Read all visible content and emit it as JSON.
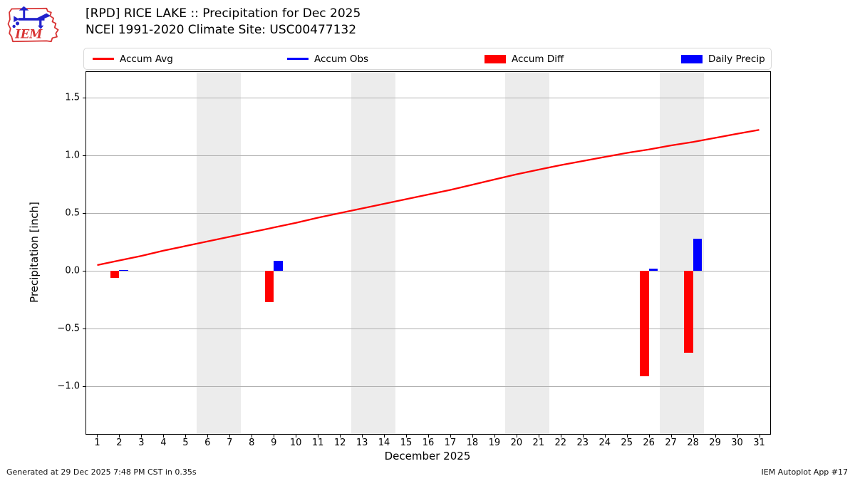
{
  "header": {
    "logo_text": "IEM",
    "title_line1": "[RPD] RICE LAKE :: Precipitation for Dec 2025",
    "title_line2": "NCEI 1991-2020 Climate Site: USC00477132"
  },
  "legend": {
    "items": [
      {
        "label": "Accum Avg",
        "swatch": "line",
        "color": "#ff0000"
      },
      {
        "label": "Accum Obs",
        "swatch": "line",
        "color": "#0000ff"
      },
      {
        "label": "Accum Diff",
        "swatch": "patch",
        "color": "#ff0000"
      },
      {
        "label": "Daily Precip",
        "swatch": "patch",
        "color": "#0000ff"
      }
    ]
  },
  "chart_data": {
    "type": "line+bar",
    "title": "[RPD] RICE LAKE :: Precipitation for Dec 2025",
    "subtitle": "NCEI 1991-2020 Climate Site: USC00477132",
    "xlabel": "December 2025",
    "ylabel": "Precipitation [inch]",
    "xlim": [
      0.5,
      31.5
    ],
    "ylim": [
      -1.41,
      1.72
    ],
    "grid": "horizontal",
    "legend_position": "top",
    "xticks": [
      1,
      2,
      3,
      4,
      5,
      6,
      7,
      8,
      9,
      10,
      11,
      12,
      13,
      14,
      15,
      16,
      17,
      18,
      19,
      20,
      21,
      22,
      23,
      24,
      25,
      26,
      27,
      28,
      29,
      30,
      31
    ],
    "yticks": [
      1.5,
      1.0,
      0.5,
      0.0,
      -0.5,
      -1.0
    ],
    "ytick_labels": [
      "1.5",
      "1.0",
      "0.5",
      "0.0",
      "−0.5",
      "−1.0"
    ],
    "weekend_bands": [
      [
        6,
        7
      ],
      [
        13,
        14
      ],
      [
        20,
        21
      ],
      [
        27,
        28
      ]
    ],
    "weekend_band_color": "#ececec",
    "series": [
      {
        "name": "Accum Avg",
        "type": "line",
        "color": "#ff0000",
        "x": [
          1,
          2,
          3,
          4,
          5,
          6,
          7,
          8,
          9,
          10,
          11,
          12,
          13,
          14,
          15,
          16,
          17,
          18,
          19,
          20,
          21,
          22,
          23,
          24,
          25,
          26,
          27,
          28,
          29,
          30,
          31
        ],
        "values": [
          0.05,
          0.09,
          0.13,
          0.175,
          0.215,
          0.255,
          0.295,
          0.335,
          0.375,
          0.415,
          0.46,
          0.5,
          0.54,
          0.58,
          0.62,
          0.66,
          0.7,
          0.745,
          0.79,
          0.835,
          0.875,
          0.915,
          0.95,
          0.985,
          1.02,
          1.05,
          1.085,
          1.115,
          1.15,
          1.185,
          1.22
        ]
      },
      {
        "name": "Accum Obs",
        "type": "line",
        "color": "#0000ff",
        "x": [],
        "values": []
      },
      {
        "name": "Accum Diff",
        "type": "bar",
        "color": "#ff0000",
        "side": "left",
        "x": [
          2,
          9,
          26,
          28
        ],
        "values": [
          -0.06,
          -0.27,
          -0.91,
          -0.71
        ]
      },
      {
        "name": "Daily Precip",
        "type": "bar",
        "color": "#0000ff",
        "side": "right",
        "x": [
          2,
          9,
          26,
          28
        ],
        "values": [
          0.01,
          0.09,
          0.02,
          0.28
        ]
      }
    ]
  },
  "footer": {
    "left": "Generated at 29 Dec 2025 7:48 PM CST in 0.35s",
    "right": "IEM Autoplot App #17"
  }
}
